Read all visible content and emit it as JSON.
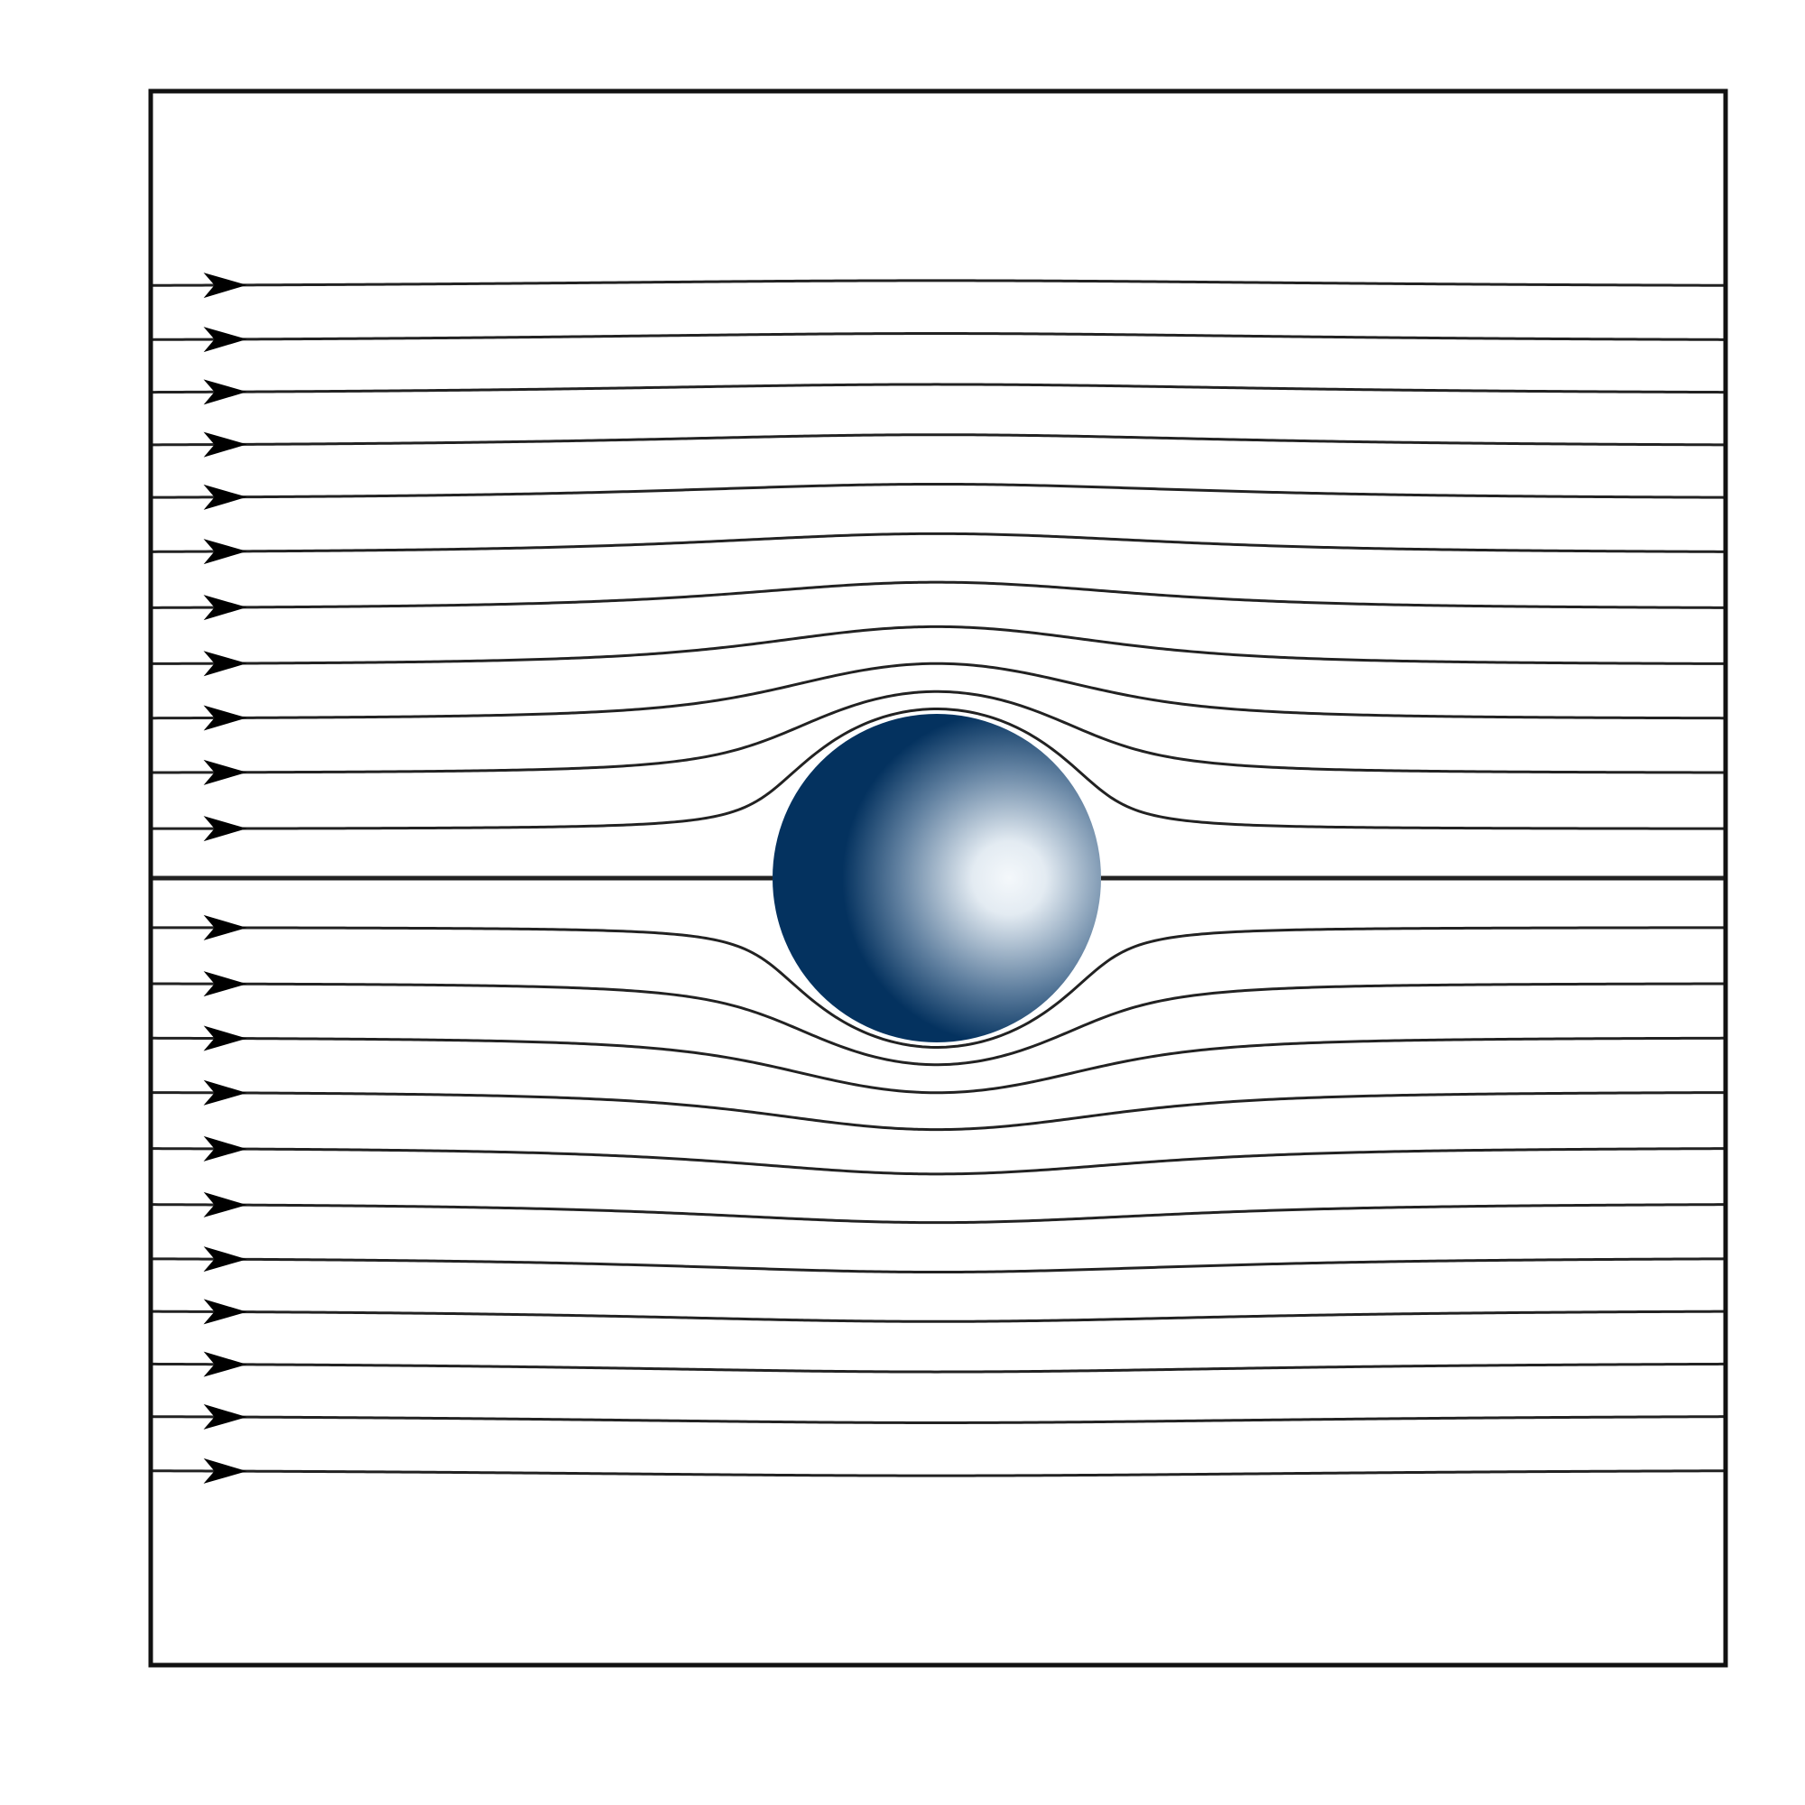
{
  "diagram": {
    "description_visible_text": "",
    "flow": {
      "direction": "left-to-right",
      "free_stream_speed": 1.0,
      "sphere_radius": 1.0,
      "domain_x": [
        -4.8,
        4.8
      ],
      "domain_y": [
        -4.5,
        4.5
      ],
      "streamline_offsets": [
        -3.6,
        -3.27,
        -2.95,
        -2.63,
        -2.31,
        -1.98,
        -1.64,
        -1.3,
        -0.97,
        -0.64,
        -0.3,
        0.0,
        0.3,
        0.64,
        0.97,
        1.3,
        1.64,
        1.98,
        2.31,
        2.63,
        2.95,
        3.27,
        3.6
      ],
      "arrow_position_x": -4.2
    },
    "colors": {
      "line": "#222222",
      "frame": "#111111",
      "arrow": "#000000",
      "sphere_dark": "#04325f",
      "sphere_light": "#f4f8fb"
    }
  }
}
